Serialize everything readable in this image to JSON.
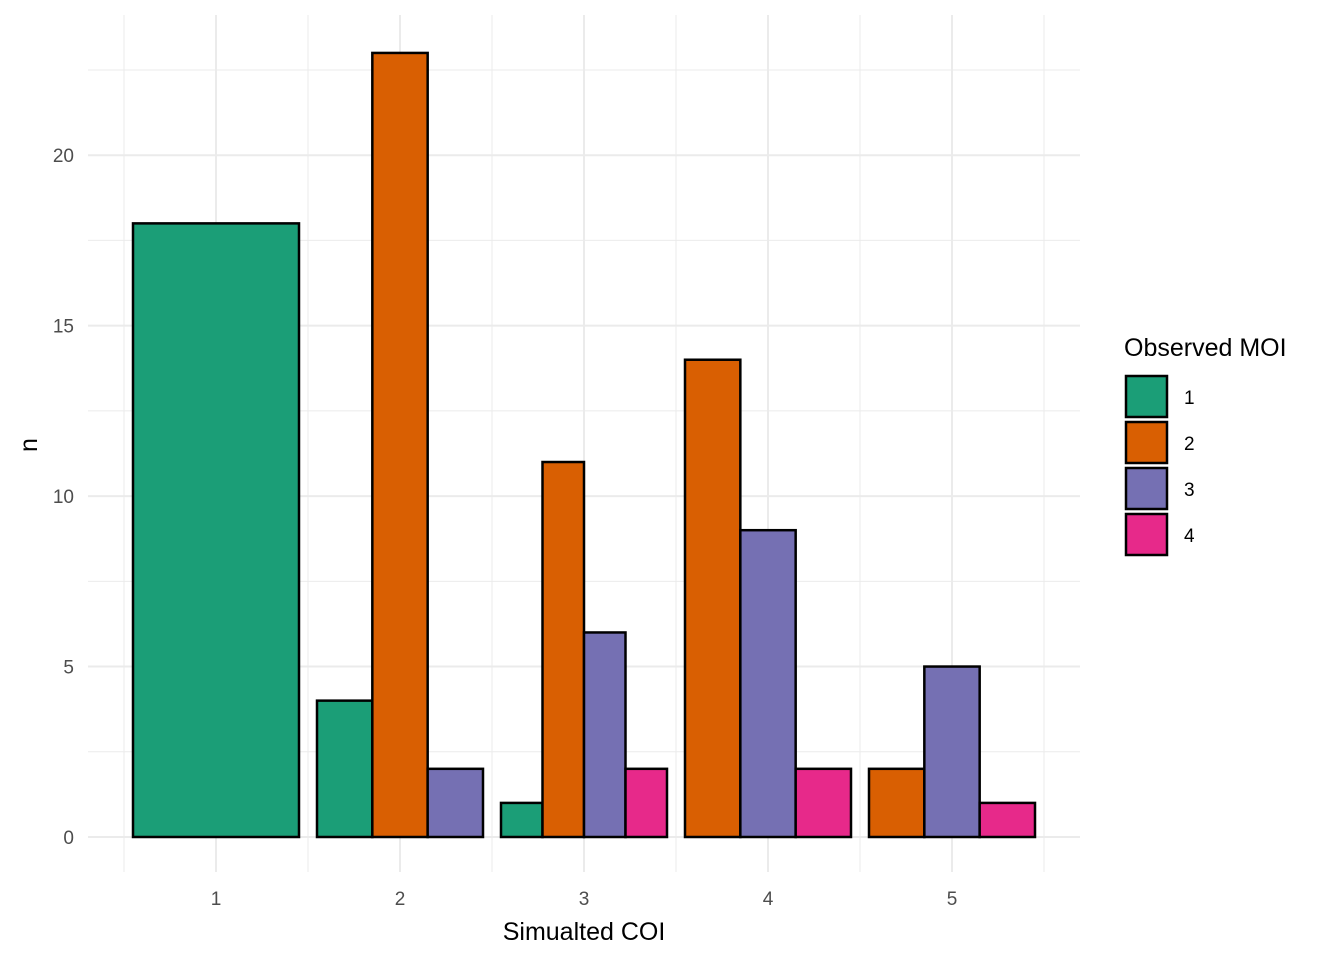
{
  "chart_data": {
    "type": "bar",
    "xlabel": "Simualted COI",
    "ylabel": "n",
    "categories": [
      "1",
      "2",
      "3",
      "4",
      "5"
    ],
    "ylim": [
      -2,
      24
    ],
    "yticks": [
      0,
      5,
      10,
      15,
      20
    ],
    "grid": true,
    "legend": {
      "title": "Observed MOI",
      "placement": "right",
      "entries": [
        "1",
        "2",
        "3",
        "4"
      ]
    },
    "colors": {
      "1": "#1b9e77",
      "2": "#d95f02",
      "3": "#7570b3",
      "4": "#e7298a"
    },
    "bars": [
      {
        "category": "1",
        "moi": "1",
        "value": 18
      },
      {
        "category": "2",
        "moi": "1",
        "value": 4
      },
      {
        "category": "2",
        "moi": "2",
        "value": 23
      },
      {
        "category": "2",
        "moi": "3",
        "value": 2
      },
      {
        "category": "3",
        "moi": "1",
        "value": 1
      },
      {
        "category": "3",
        "moi": "2",
        "value": 11
      },
      {
        "category": "3",
        "moi": "3",
        "value": 6
      },
      {
        "category": "3",
        "moi": "4",
        "value": 2
      },
      {
        "category": "4",
        "moi": "2",
        "value": 14
      },
      {
        "category": "4",
        "moi": "3",
        "value": 9
      },
      {
        "category": "4",
        "moi": "4",
        "value": 2
      },
      {
        "category": "5",
        "moi": "2",
        "value": 2
      },
      {
        "category": "5",
        "moi": "3",
        "value": 5
      },
      {
        "category": "5",
        "moi": "4",
        "value": 1
      }
    ]
  }
}
